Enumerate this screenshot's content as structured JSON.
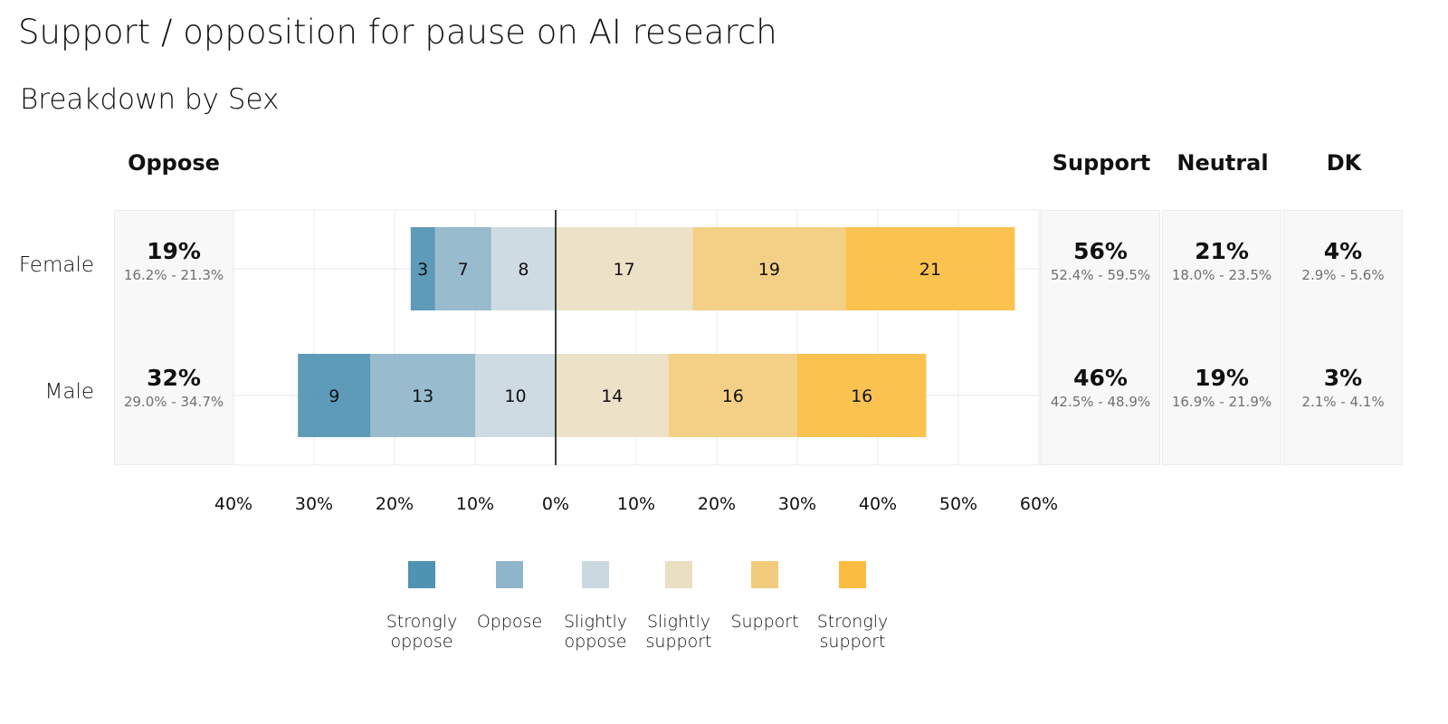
{
  "title": "Support / opposition for pause on AI research",
  "subtitle": "Breakdown by Sex",
  "column_headers": {
    "oppose": "Oppose",
    "support": "Support",
    "neutral": "Neutral",
    "dk": "DK"
  },
  "rows": [
    {
      "label": "Female",
      "oppose": {
        "value": "19%",
        "ci": "16.2% - 21.3%"
      },
      "support": {
        "value": "56%",
        "ci": "52.4% - 59.5%"
      },
      "neutral": {
        "value": "21%",
        "ci": "18.0% - 23.5%"
      },
      "dk": {
        "value": "4%",
        "ci": "2.9% - 5.6%"
      }
    },
    {
      "label": "Male",
      "oppose": {
        "value": "32%",
        "ci": "29.0% - 34.7%"
      },
      "support": {
        "value": "46%",
        "ci": "42.5% - 48.9%"
      },
      "neutral": {
        "value": "19%",
        "ci": "16.9% - 21.9%"
      },
      "dk": {
        "value": "3%",
        "ci": "2.1% - 4.1%"
      }
    }
  ],
  "x_ticks": [
    "40%",
    "30%",
    "20%",
    "10%",
    "0%",
    "10%",
    "20%",
    "30%",
    "40%",
    "50%",
    "60%"
  ],
  "legend": [
    {
      "label_line1": "Strongly",
      "label_line2": "oppose",
      "color": "#4f93b2"
    },
    {
      "label_line1": "Oppose",
      "label_line2": "",
      "color": "#8fb5ca"
    },
    {
      "label_line1": "Slightly",
      "label_line2": "oppose",
      "color": "#cbd8e0"
    },
    {
      "label_line1": "Slightly",
      "label_line2": "support",
      "color": "#ebdfc3"
    },
    {
      "label_line1": "Support",
      "label_line2": "",
      "color": "#f2cc7c"
    },
    {
      "label_line1": "Strongly",
      "label_line2": "support",
      "color": "#fbbd41"
    }
  ],
  "chart_data": {
    "type": "bar",
    "orientation": "horizontal-diverging-stacked",
    "categories": [
      "Female",
      "Male"
    ],
    "xlim": [
      -40,
      60
    ],
    "series": [
      {
        "name": "Strongly oppose",
        "side": "oppose",
        "values": [
          3,
          9
        ],
        "color": "#4f93b2"
      },
      {
        "name": "Oppose",
        "side": "oppose",
        "values": [
          7,
          13
        ],
        "color": "#8fb5ca"
      },
      {
        "name": "Slightly oppose",
        "side": "oppose",
        "values": [
          8,
          10
        ],
        "color": "#cbd8e0"
      },
      {
        "name": "Slightly support",
        "side": "support",
        "values": [
          17,
          14
        ],
        "color": "#ebdfc3"
      },
      {
        "name": "Support",
        "side": "support",
        "values": [
          19,
          16
        ],
        "color": "#f2cc7c"
      },
      {
        "name": "Strongly support",
        "side": "support",
        "values": [
          21,
          16
        ],
        "color": "#fbbd41"
      }
    ],
    "grid": true,
    "legend_position": "bottom"
  }
}
